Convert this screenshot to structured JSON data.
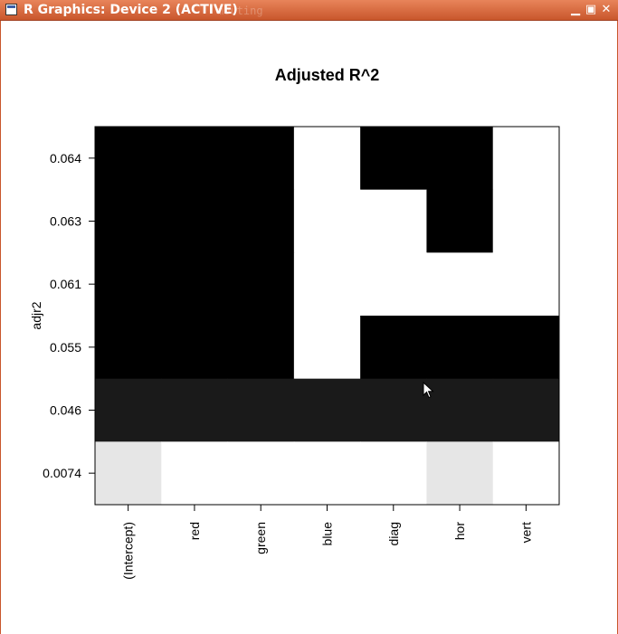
{
  "window": {
    "title": "R Graphics: Device 2 (ACTIVE)",
    "ghost_text": "mouting",
    "icons": {
      "app": "window-icon",
      "minimize": "minimize-icon",
      "maximize": "maximize-icon",
      "close": "close-icon"
    }
  },
  "chart_data": {
    "type": "heatmap",
    "title": "Adjusted R^2",
    "xlabel": "",
    "ylabel": "adjr2",
    "categories": [
      "(Intercept)",
      "red",
      "green",
      "blue",
      "diag",
      "hor",
      "vert"
    ],
    "rows": [
      "0.064",
      "0.063",
      "0.061",
      "0.055",
      "0.046",
      "0.0074"
    ],
    "cell_colors": [
      [
        "#000000",
        "#000000",
        "#000000",
        "#ffffff",
        "#000000",
        "#000000",
        "#ffffff"
      ],
      [
        "#000000",
        "#000000",
        "#000000",
        "#ffffff",
        "#ffffff",
        "#000000",
        "#ffffff"
      ],
      [
        "#000000",
        "#000000",
        "#000000",
        "#ffffff",
        "#ffffff",
        "#ffffff",
        "#ffffff"
      ],
      [
        "#000000",
        "#000000",
        "#000000",
        "#ffffff",
        "#000000",
        "#000000",
        "#000000"
      ],
      [
        "#1a1a1a",
        "#1a1a1a",
        "#1a1a1a",
        "#1a1a1a",
        "#1a1a1a",
        "#1a1a1a",
        "#1a1a1a"
      ],
      [
        "#e6e6e6",
        "#ffffff",
        "#ffffff",
        "#ffffff",
        "#ffffff",
        "#e6e6e6",
        "#ffffff"
      ]
    ],
    "grid": false
  }
}
